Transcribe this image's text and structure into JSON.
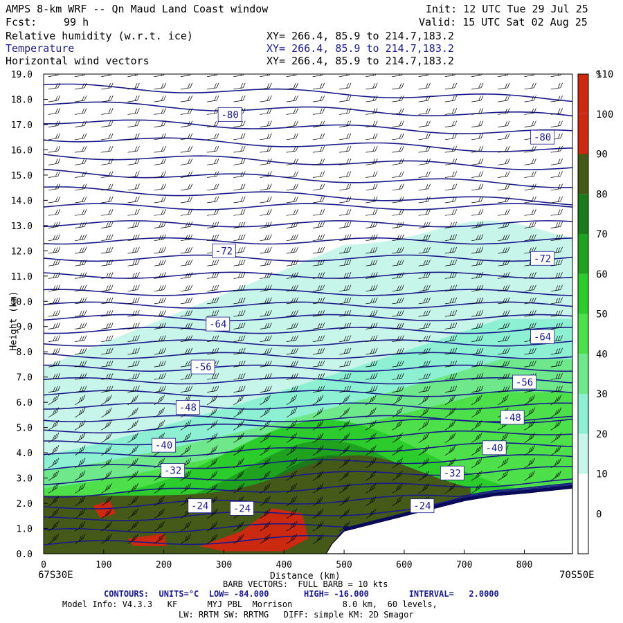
{
  "header": {
    "title": "AMPS 8-km WRF -- Qn Maud Land Coast window",
    "init": "Init: 12 UTC Tue 29 Jul 25",
    "fcst_label": "Fcst:",
    "fcst_value": "99 h",
    "valid": "Valid: 15 UTC Sat 02 Aug 25",
    "fields": [
      {
        "name": "Relative humidity (w.r.t. ice)",
        "xy": "XY= 266.4, 85.9 to 214.7,183.2"
      },
      {
        "name": "Temperature",
        "xy": "XY= 266.4, 85.9 to 214.7,183.2"
      },
      {
        "name": "Horizontal wind vectors",
        "xy": "XY= 266.4, 85.9 to 214.7,183.2"
      }
    ]
  },
  "chart_data": {
    "type": "heatmap",
    "title": "AMPS 8-km WRF -- Qn Maud Land Coast window",
    "xlabel": "Distance (km)",
    "ylabel": "Height (km)",
    "xlim": [
      0,
      880
    ],
    "ylim": [
      0,
      19
    ],
    "x_ticks": [
      0,
      100,
      200,
      300,
      400,
      500,
      600,
      700,
      800
    ],
    "y_ticks": [
      "0.0",
      "1.0",
      "2.0",
      "3.0",
      "4.0",
      "5.0",
      "6.0",
      "7.0",
      "8.0",
      "9.0",
      "10.0",
      "11.0",
      "12.0",
      "13.0",
      "14.0",
      "15.0",
      "16.0",
      "17.0",
      "18.0",
      "19.0"
    ],
    "left_endpoint": "67S30E",
    "right_endpoint": "70S50E",
    "colorbar": {
      "unit": "%",
      "levels": [
        0,
        10,
        20,
        30,
        40,
        50,
        60,
        70,
        80,
        90,
        100,
        110
      ],
      "colors": [
        "#ffffff",
        "#ffffff",
        "#ffffff",
        "#c8f5e9",
        "#8ef0d2",
        "#6ee88a",
        "#4ee04a",
        "#2dcc2d",
        "#1fa31f",
        "#1b7a1b",
        "#455a19",
        "#cc2a10"
      ]
    },
    "contour_labels": [
      {
        "label": "-80",
        "x": 310,
        "z": 17.4
      },
      {
        "label": "-80",
        "x": 830,
        "z": 16.5
      },
      {
        "label": "-72",
        "x": 300,
        "z": 12.0
      },
      {
        "label": "-72",
        "x": 830,
        "z": 11.7
      },
      {
        "label": "-64",
        "x": 290,
        "z": 9.1
      },
      {
        "label": "-64",
        "x": 830,
        "z": 8.6
      },
      {
        "label": "-56",
        "x": 265,
        "z": 7.4
      },
      {
        "label": "-56",
        "x": 800,
        "z": 6.8
      },
      {
        "label": "-48",
        "x": 240,
        "z": 5.8
      },
      {
        "label": "-48",
        "x": 780,
        "z": 5.4
      },
      {
        "label": "-40",
        "x": 200,
        "z": 4.3
      },
      {
        "label": "-40",
        "x": 750,
        "z": 4.2
      },
      {
        "label": "-32",
        "x": 215,
        "z": 3.3
      },
      {
        "label": "-32",
        "x": 680,
        "z": 3.2
      },
      {
        "label": "-24",
        "x": 260,
        "z": 1.9
      },
      {
        "label": "-24",
        "x": 330,
        "z": 1.8
      },
      {
        "label": "-24",
        "x": 630,
        "z": 1.9
      }
    ],
    "terrain_profile": [
      [
        470,
        0
      ],
      [
        480,
        0.4
      ],
      [
        500,
        0.9
      ],
      [
        550,
        1.2
      ],
      [
        600,
        1.5
      ],
      [
        650,
        1.8
      ],
      [
        700,
        2.1
      ],
      [
        750,
        2.3
      ],
      [
        800,
        2.4
      ],
      [
        880,
        2.6
      ]
    ]
  },
  "footer": {
    "barb_note": "BARB VECTORS:  FULL BARB = 10 kts",
    "contours": "CONTOURS:  UNITS=°C  LOW= -84.000       HIGH= -16.000        INTERVAL=   2.0000",
    "model_info_1": "Model Info: V4.3.3   KF      MYJ PBL  Morrison          8.0 km,  60 levels,",
    "model_info_2": "LW: RRTM SW: RRTMG   DIFF: simple KM: 2D Smagor"
  },
  "colors": {
    "contour": "#1a1a8a",
    "field_temperature": "#1a1aa0"
  }
}
